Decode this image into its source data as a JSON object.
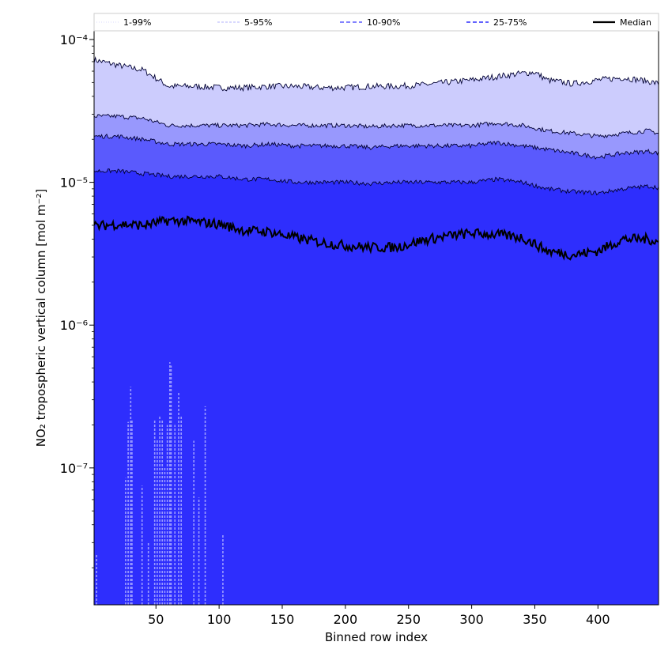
{
  "chart_data": {
    "type": "area",
    "title": "",
    "xlabel": "Binned row index",
    "ylabel": "NO₂ tropospheric vertical column [mol m⁻²]",
    "yscale": "log",
    "xlim": [
      1,
      448
    ],
    "ylim": [
      1.1e-08,
      0.000115
    ],
    "x_ticks": [
      50,
      100,
      150,
      200,
      250,
      300,
      350,
      400
    ],
    "x_tick_labels": [
      "50",
      "100",
      "150",
      "200",
      "250",
      "300",
      "350",
      "400"
    ],
    "y_ticks": [
      1e-07,
      1e-06,
      1e-05,
      0.0001
    ],
    "y_tick_labels": [
      "10⁻⁷",
      "10⁻⁶",
      "10⁻⁵",
      "10⁻⁴"
    ],
    "grid": false,
    "legend_position": "top",
    "x_anchor": [
      1,
      20,
      40,
      60,
      80,
      100,
      120,
      140,
      160,
      180,
      200,
      220,
      240,
      260,
      280,
      300,
      320,
      340,
      350,
      360,
      380,
      400,
      420,
      440,
      448
    ],
    "series": [
      {
        "name": "1-99%",
        "style": "dotted-thin",
        "color": "#ccccfd",
        "lower": [
          1.1e-08,
          1.1e-08,
          1.1e-08,
          1.1e-08,
          1.1e-08,
          1.1e-08,
          1.1e-08,
          1.1e-08,
          1.1e-08,
          1.1e-08,
          1.1e-08,
          1.1e-08,
          1.1e-08,
          1.1e-08,
          1.1e-08,
          1.1e-08,
          1.1e-08,
          1.1e-08,
          1.1e-08,
          1.1e-08,
          1.1e-08,
          1.1e-08,
          1.1e-08,
          1.1e-08,
          1.1e-08
        ],
        "upper": [
          7.2e-05,
          6.6e-05,
          6.1e-05,
          4.7e-05,
          4.7e-05,
          4.6e-05,
          4.6e-05,
          4.7e-05,
          4.7e-05,
          4.6e-05,
          4.6e-05,
          4.7e-05,
          4.7e-05,
          4.8e-05,
          5e-05,
          5.2e-05,
          5.5e-05,
          5.8e-05,
          5.9e-05,
          5.2e-05,
          4.9e-05,
          5.2e-05,
          5.4e-05,
          5.1e-05,
          4.9e-05
        ]
      },
      {
        "name": "5-95%",
        "style": "dashed-thin",
        "color": "#9898fd",
        "lower": [
          1.1e-08,
          1.1e-08,
          1.1e-08,
          1.1e-08,
          1.1e-08,
          1.1e-08,
          1.1e-08,
          1.1e-08,
          1.1e-08,
          1.1e-08,
          1.1e-08,
          1.1e-08,
          1.1e-08,
          1.1e-08,
          1.1e-08,
          1.1e-08,
          1.1e-08,
          1.1e-08,
          1.1e-08,
          1.1e-08,
          1.1e-08,
          1.1e-08,
          1.1e-08,
          1.1e-08,
          1.1e-08
        ],
        "upper": [
          2.9e-05,
          2.9e-05,
          2.8e-05,
          2.5e-05,
          2.5e-05,
          2.5e-05,
          2.5e-05,
          2.55e-05,
          2.5e-05,
          2.5e-05,
          2.5e-05,
          2.45e-05,
          2.5e-05,
          2.5e-05,
          2.5e-05,
          2.5e-05,
          2.6e-05,
          2.5e-05,
          2.4e-05,
          2.3e-05,
          2.2e-05,
          2.1e-05,
          2.2e-05,
          2.3e-05,
          2.2e-05
        ]
      },
      {
        "name": "10-90%",
        "style": "dashed",
        "color": "#5a5afd",
        "lower": [
          1.1e-08,
          1.1e-08,
          1.1e-08,
          1.1e-08,
          1.1e-08,
          1.1e-08,
          1.1e-08,
          1.1e-08,
          1.1e-08,
          1.1e-08,
          1.1e-08,
          1.1e-08,
          1.1e-08,
          1.1e-08,
          1.1e-08,
          1.1e-08,
          1.1e-08,
          1.1e-08,
          1.1e-08,
          1.1e-08,
          1.1e-08,
          1.1e-08,
          1.1e-08,
          1.1e-08,
          1.1e-08
        ],
        "upper": [
          2.1e-05,
          2.1e-05,
          2e-05,
          1.85e-05,
          1.85e-05,
          1.85e-05,
          1.8e-05,
          1.85e-05,
          1.8e-05,
          1.8e-05,
          1.8e-05,
          1.75e-05,
          1.8e-05,
          1.8e-05,
          1.8e-05,
          1.8e-05,
          1.9e-05,
          1.8e-05,
          1.75e-05,
          1.7e-05,
          1.6e-05,
          1.5e-05,
          1.6e-05,
          1.65e-05,
          1.6e-05
        ]
      },
      {
        "name": "25-75%",
        "style": "dashed",
        "color": "#2e2efd",
        "lower": [
          1.1e-08,
          1.1e-08,
          1.1e-08,
          1.1e-08,
          1.1e-08,
          1.1e-08,
          1.1e-08,
          1.1e-08,
          1.1e-08,
          1.1e-08,
          1.1e-08,
          1.1e-08,
          1.1e-08,
          1.1e-08,
          1.1e-08,
          1.1e-08,
          1.1e-08,
          1.1e-08,
          1.1e-08,
          1.1e-08,
          1.1e-08,
          1.1e-08,
          1.1e-08,
          1.1e-08,
          1.1e-08
        ],
        "upper": [
          1.2e-05,
          1.2e-05,
          1.15e-05,
          1.1e-05,
          1.1e-05,
          1.1e-05,
          1.05e-05,
          1.05e-05,
          1e-05,
          1e-05,
          1e-05,
          9.8e-06,
          1e-05,
          1e-05,
          1e-05,
          1e-05,
          1.05e-05,
          1e-05,
          9.5e-06,
          9e-06,
          8.6e-06,
          8.4e-06,
          9e-06,
          9.4e-06,
          9.2e-06
        ]
      },
      {
        "name": "Median",
        "style": "solid",
        "color": "#000000",
        "values": [
          4.9e-06,
          5.1e-06,
          5e-06,
          5.4e-06,
          5.3e-06,
          5.1e-06,
          4.6e-06,
          4.5e-06,
          4.1e-06,
          3.8e-06,
          3.6e-06,
          3.5e-06,
          3.5e-06,
          3.9e-06,
          4.2e-06,
          4.4e-06,
          4.3e-06,
          4.1e-06,
          3.7e-06,
          3.3e-06,
          3.1e-06,
          3.3e-06,
          4e-06,
          4e-06,
          3.8e-06
        ]
      }
    ],
    "low_tail_spikes": {
      "x": [
        3,
        26,
        28,
        30,
        31,
        39,
        44,
        49,
        51,
        53,
        55,
        57,
        59,
        61,
        62,
        65,
        68,
        70,
        80,
        84,
        89,
        103
      ],
      "values": [
        2.5e-08,
        8.5e-08,
        2.1e-07,
        3.7e-07,
        2.2e-07,
        7.5e-08,
        3e-08,
        2.2e-07,
        1.6e-07,
        2.3e-07,
        2.2e-07,
        1e-07,
        2e-07,
        5.5e-07,
        5.2e-07,
        2e-07,
        3.4e-07,
        2.3e-07,
        1.55e-07,
        6.2e-08,
        2.7e-07,
        3.4e-08
      ]
    }
  }
}
